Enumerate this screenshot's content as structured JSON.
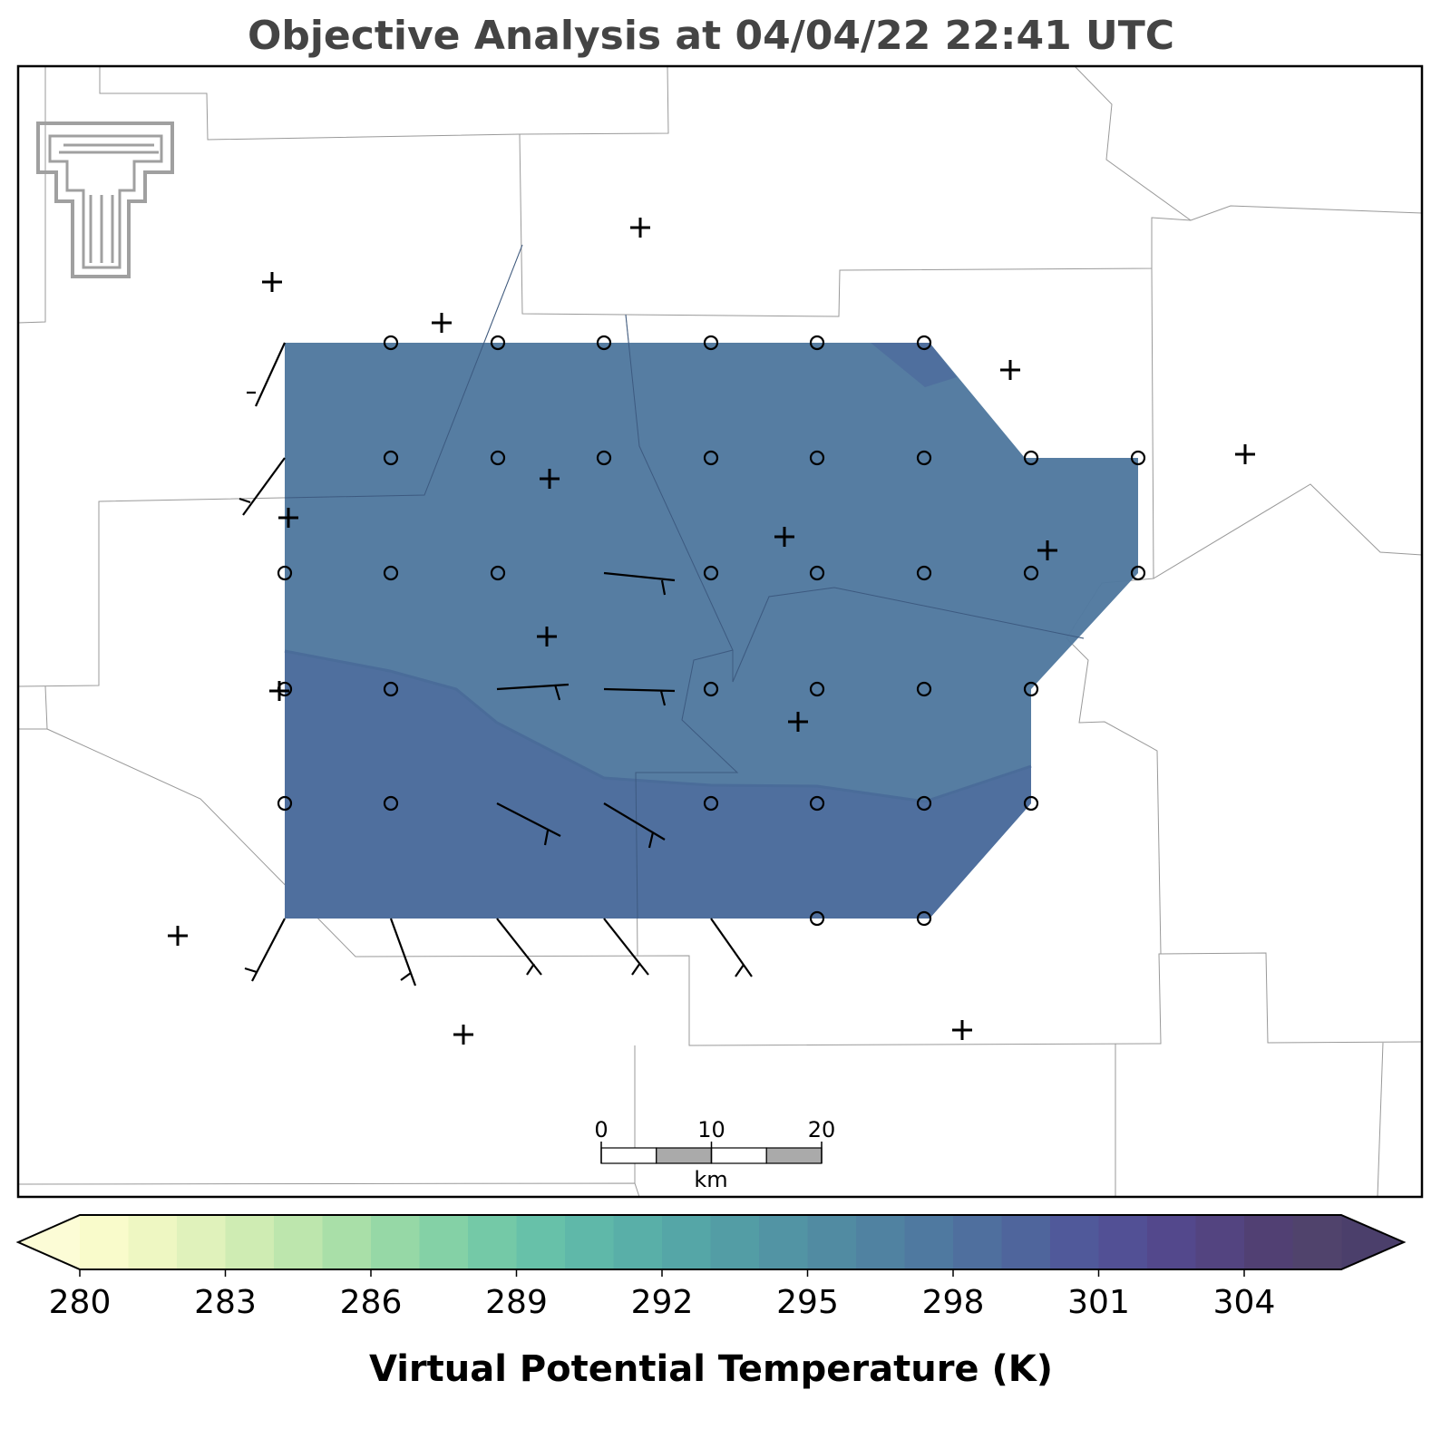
{
  "title": "Objective Analysis at 04/04/22 22:41 UTC",
  "colorbar": {
    "label": "Virtual Potential Temperature (K)",
    "range": [
      280,
      306
    ],
    "ticks": [
      280,
      283,
      286,
      289,
      292,
      295,
      298,
      301,
      304
    ],
    "colors": [
      "#f9fbcb",
      "#eef7c2",
      "#e0f2bb",
      "#cfecb3",
      "#bde6ad",
      "#a9dfa8",
      "#96d8a6",
      "#84d1a6",
      "#74c9a7",
      "#67c1a9",
      "#5fb8a9",
      "#59afa8",
      "#55a6a7",
      "#539da5",
      "#5294a4",
      "#518ba2",
      "#5082a1",
      "#4f79a0",
      "#4f6f9e",
      "#4f659c",
      "#50599a",
      "#525095",
      "#53488c",
      "#534480",
      "#514073",
      "#50436c"
    ]
  },
  "scale_bar": {
    "ticks": [
      0,
      10,
      20
    ],
    "unit": "km"
  }
}
